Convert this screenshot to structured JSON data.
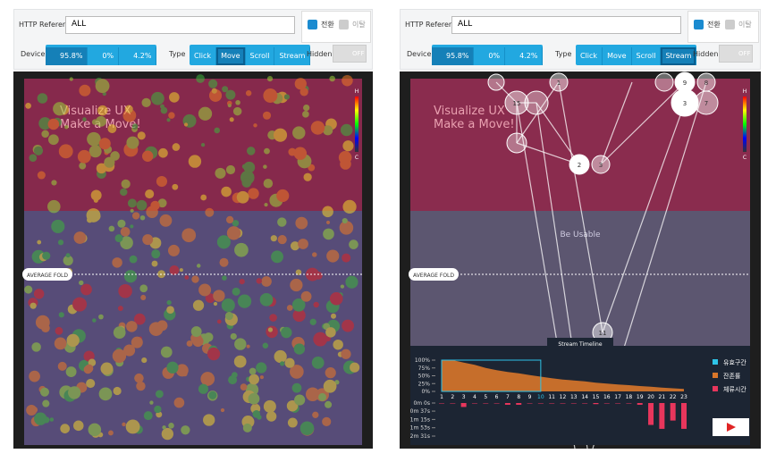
{
  "panels": [
    {
      "toolbar": {
        "referer_label": "HTTP Referer",
        "referer_value": "ALL",
        "conversion": "전환",
        "exit": "이탈",
        "device_label": "Device",
        "devices": [
          "95.8%",
          "0%",
          "4.2%"
        ],
        "active_device": 0,
        "type_label": "Type",
        "types": [
          "Click",
          "Move",
          "Scroll",
          "Stream"
        ],
        "active_type": 1,
        "hidden_label": "Hidden",
        "hidden_value": "OFF"
      },
      "view": {
        "scale_top": "H",
        "scale_bottom": "C",
        "fold": "AVERAGE FOLD",
        "headline": "Visualize UX\nMake a Move!"
      }
    },
    {
      "toolbar": {
        "referer_label": "HTTP Referer",
        "referer_value": "ALL",
        "conversion": "전환",
        "exit": "이탈",
        "device_label": "Device",
        "devices": [
          "95.8%",
          "0%",
          "4.2%"
        ],
        "active_device": 0,
        "type_label": "Type",
        "types": [
          "Click",
          "Move",
          "Scroll",
          "Stream"
        ],
        "active_type": 3,
        "hidden_label": "Hidden",
        "hidden_value": "OFF"
      },
      "view": {
        "scale_top": "H",
        "scale_bottom": "C",
        "fold": "AVERAGE FOLD",
        "headline": "Visualize UX\nMake a Move!",
        "section": "Be Usable",
        "nodes": [
          "1",
          "15",
          "9",
          "8",
          "3",
          "7",
          "2",
          "3",
          "11"
        ],
        "timeline": {
          "tab": "Stream Timeline",
          "steps": [
            1,
            2,
            3,
            4,
            5,
            6,
            7,
            8,
            9,
            10,
            11,
            12,
            13,
            14,
            15,
            16,
            17,
            18,
            19,
            20,
            21,
            22,
            23
          ],
          "retention": [
            100,
            100,
            92,
            85,
            75,
            68,
            62,
            58,
            52,
            47,
            42,
            38,
            35,
            32,
            28,
            25,
            22,
            20,
            17,
            15,
            12,
            10,
            8
          ],
          "dwell": [
            2,
            2,
            18,
            2,
            2,
            2,
            8,
            8,
            2,
            2,
            2,
            2,
            2,
            2,
            5,
            2,
            2,
            2,
            8,
            100,
            118,
            80,
            118
          ],
          "valid_range": [
            1,
            10
          ],
          "retention_lim": [
            0,
            100
          ],
          "retention_ticks": [
            {
              "value": 100,
              "label": "100%"
            },
            {
              "value": 75,
              "label": "75%"
            },
            {
              "value": 50,
              "label": "50%"
            },
            {
              "value": 25,
              "label": "25%"
            },
            {
              "value": 0,
              "label": "0%"
            }
          ],
          "dwell_lim": [
            0,
            151
          ],
          "dwell_ticks": [
            {
              "value": 0,
              "label": "0m 0s"
            },
            {
              "value": 37,
              "label": "0m 37s"
            },
            {
              "value": 75,
              "label": "1m 15s"
            },
            {
              "value": 113,
              "label": "1m 53s"
            },
            {
              "value": 151,
              "label": "2m 31s"
            }
          ],
          "legend": [
            "유효구간",
            "잔존률",
            "체류시간"
          ]
        }
      }
    }
  ]
}
